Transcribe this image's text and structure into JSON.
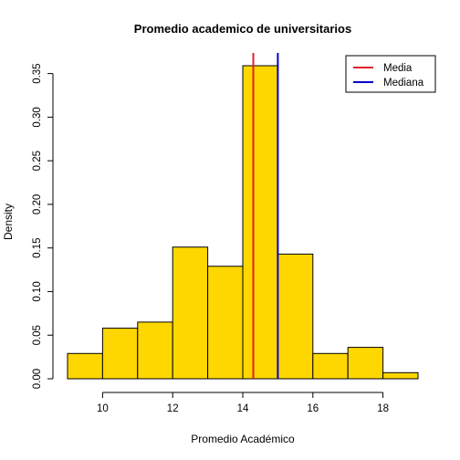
{
  "chart_data": {
    "type": "histogram",
    "title": "Promedio academico de universitarios",
    "xlabel": "Promedio Académico",
    "ylabel": "Density",
    "bins": [
      {
        "from": 9,
        "to": 10,
        "density": 0.029
      },
      {
        "from": 10,
        "to": 11,
        "density": 0.058
      },
      {
        "from": 11,
        "to": 12,
        "density": 0.065
      },
      {
        "from": 12,
        "to": 13,
        "density": 0.151
      },
      {
        "from": 13,
        "to": 14,
        "density": 0.129
      },
      {
        "from": 14,
        "to": 15,
        "density": 0.359
      },
      {
        "from": 15,
        "to": 16,
        "density": 0.143
      },
      {
        "from": 16,
        "to": 17,
        "density": 0.029
      },
      {
        "from": 17,
        "to": 18,
        "density": 0.036
      },
      {
        "from": 18,
        "to": 19,
        "density": 0.007
      }
    ],
    "bar_color": "#FFD700",
    "xlim": [
      9,
      19
    ],
    "ylim": [
      0,
      0.359
    ],
    "x_ticks": [
      10,
      12,
      14,
      16,
      18
    ],
    "x_tick_labels": [
      "10",
      "12",
      "14",
      "16",
      "18"
    ],
    "y_ticks": [
      0,
      0.05,
      0.1,
      0.15,
      0.2,
      0.25,
      0.3,
      0.35
    ],
    "y_tick_labels": [
      "0.00",
      "0.05",
      "0.10",
      "0.15",
      "0.20",
      "0.25",
      "0.30",
      "0.35"
    ],
    "vlines": [
      {
        "name": "Media",
        "x": 14.3,
        "color": "#E0202C"
      },
      {
        "name": "Mediana",
        "x": 15.0,
        "color": "#0000CD"
      }
    ],
    "legend": {
      "position": "top-right",
      "entries": [
        {
          "label": "Media",
          "color": "#E0202C"
        },
        {
          "label": "Mediana",
          "color": "#0000CD"
        }
      ]
    },
    "grid": false
  }
}
